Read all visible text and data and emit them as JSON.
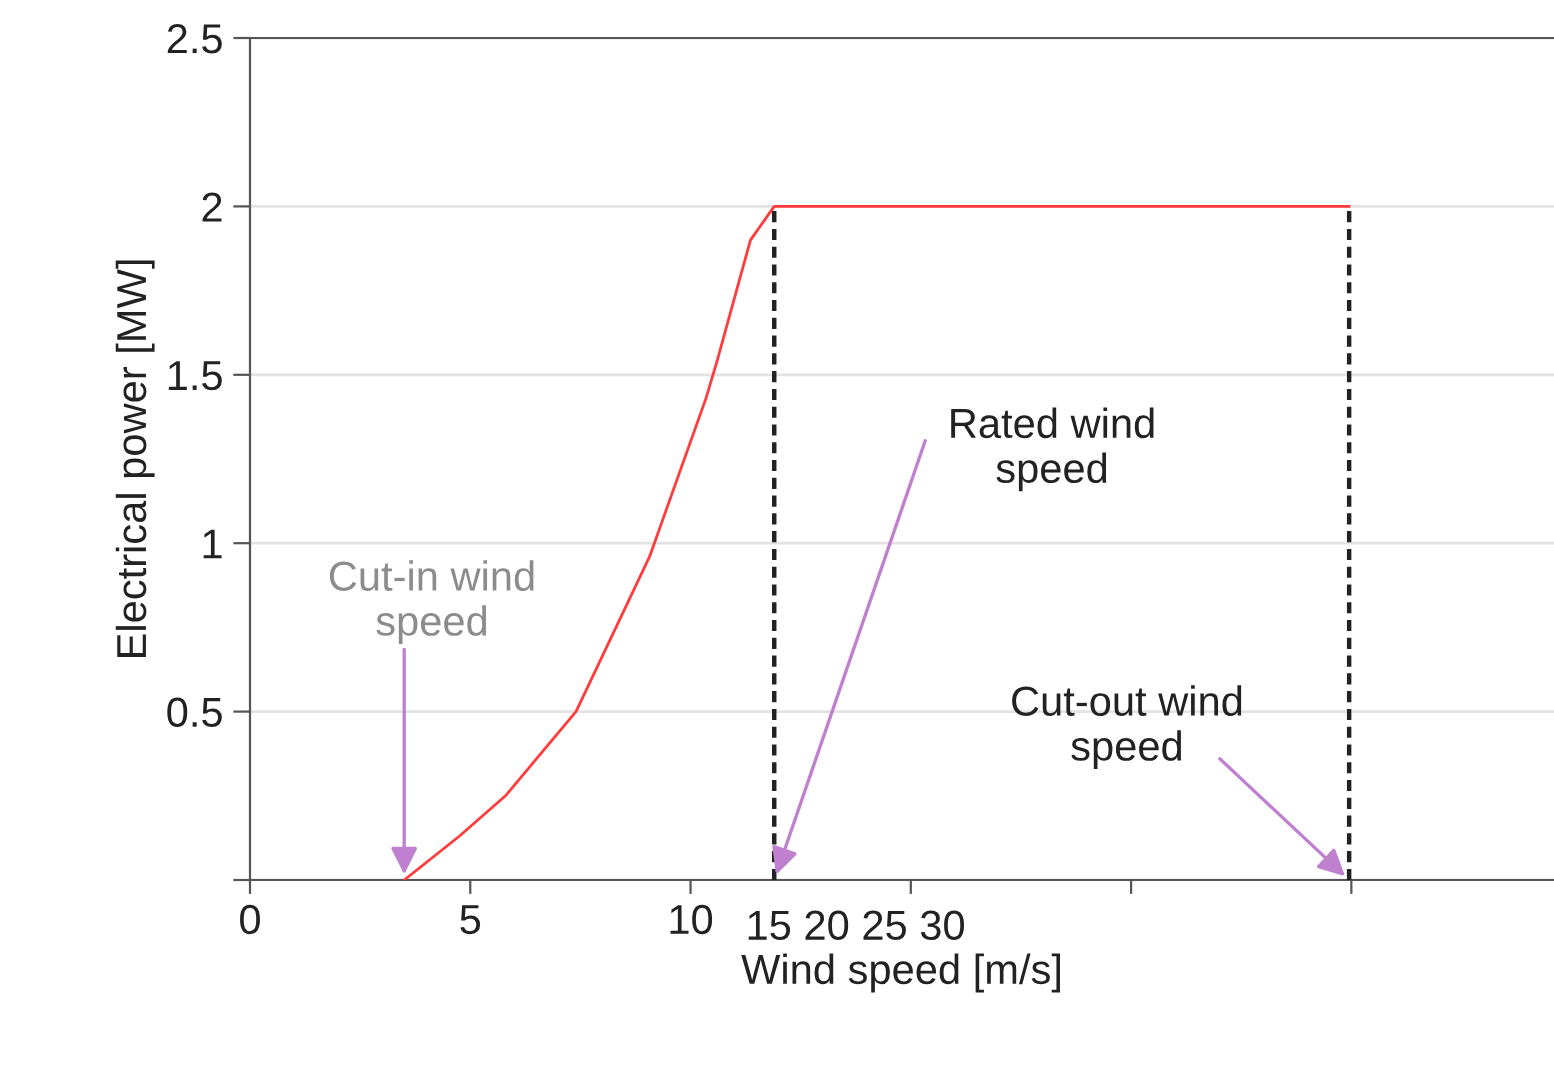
{
  "chart_data": {
    "type": "line",
    "xlabel": "Wind speed [m/s]",
    "ylabel": "Electrical power [MW]",
    "series": [
      {
        "color": "#ff3b3b",
        "x": [
          3.5,
          4.75,
          5.8,
          7.4,
          9.07,
          10.35,
          10.6,
          11.36,
          11.9,
          12.3,
          24.95
        ],
        "values": [
          0,
          0.13,
          0.25,
          0.5,
          0.96,
          1.43,
          1.54,
          1.9,
          2,
          2,
          2
        ]
      },
      {
        "color": "#222222",
        "line_style": "dashed",
        "x": [
          11.9,
          11.9
        ],
        "values": [
          0,
          2
        ]
      },
      {
        "color": "#222222",
        "line_style": "dashed",
        "x": [
          24.95,
          24.95
        ],
        "values": [
          0,
          2
        ]
      }
    ],
    "xlim": [
      0,
      29.6
    ],
    "xticks": [
      0,
      5,
      10,
      {
        "value": 15,
        "label": null
      },
      {
        "value": 20,
        "label": null
      },
      {
        "value": 25,
        "label": null
      }
    ],
    "ylim": [
      0,
      2.5
    ],
    "yticks": [
      {
        "value": 0,
        "label": null
      },
      0.5,
      1,
      1.5,
      2,
      2.5
    ],
    "grid": "y",
    "legend": false,
    "line_style": "solid",
    "annotations": [
      "15 20 25 30",
      {
        "text": "Cut-in wind\nspeed",
        "x": 3.5,
        "y": 0
      },
      {
        "text": "Rated wind\nspeed",
        "x": 11.9,
        "y": 0
      },
      {
        "text": "Cut-out wind\nspeed",
        "x": 24.95,
        "y": 0
      }
    ]
  }
}
